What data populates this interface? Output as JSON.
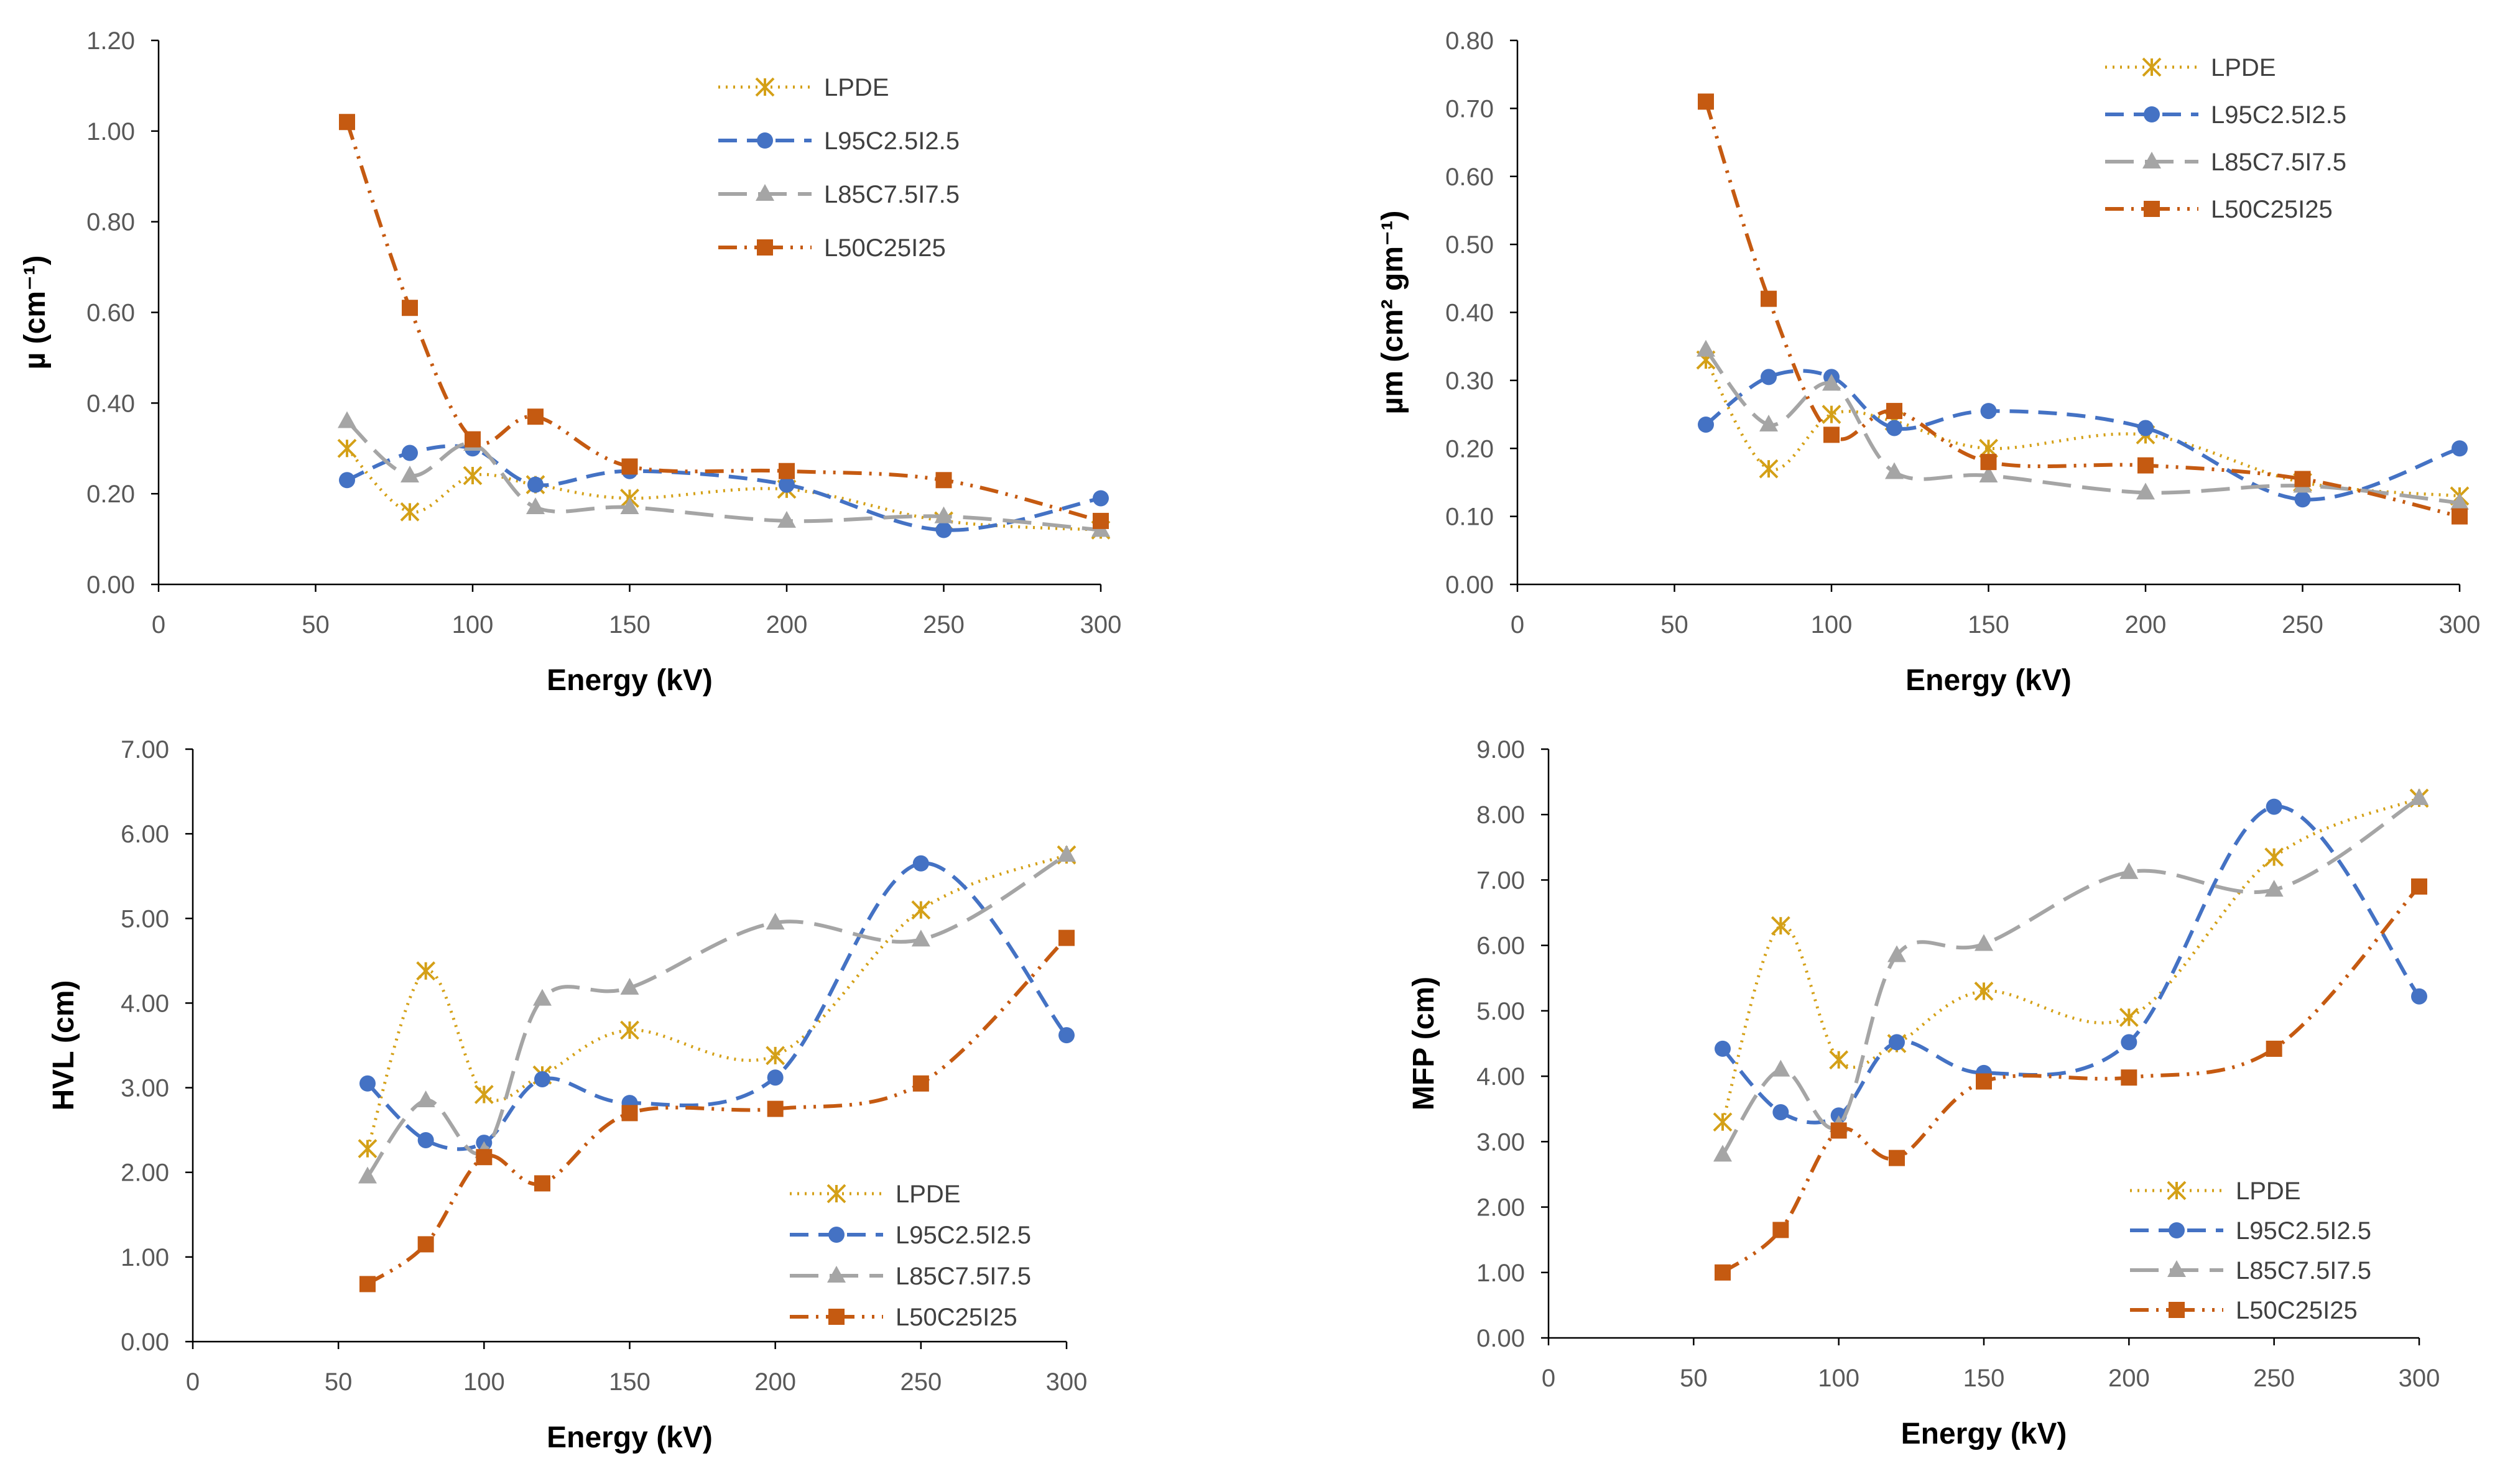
{
  "series_styles": [
    {
      "name": "LPDE",
      "color": "#D4A017",
      "dash": "3,9",
      "width": 5,
      "marker": "star"
    },
    {
      "name": "L95C2.5I2.5",
      "color": "#4472C4",
      "dash": "30,16",
      "width": 6,
      "marker": "circle"
    },
    {
      "name": "L85C7.5I7.5",
      "color": "#A5A5A5",
      "dash": "46,18",
      "width": 6,
      "marker": "triangle"
    },
    {
      "name": "L50C25I25",
      "color": "#C55A11",
      "dash": "30,12,4,12,4,12",
      "width": 6,
      "marker": "square"
    }
  ],
  "chart_data": [
    {
      "type": "line",
      "id": "mu",
      "xlabel": "Energy (kV)",
      "ylabel": "µ (cm⁻¹)",
      "xlim": [
        0,
        300
      ],
      "xticks": [
        0,
        50,
        100,
        150,
        200,
        250,
        300
      ],
      "xtick_labels": [
        "0",
        "50",
        "100",
        "150",
        "200",
        "250",
        "300"
      ],
      "ylim": [
        0,
        1.2
      ],
      "yticks": [
        0,
        0.2,
        0.4,
        0.6,
        0.8,
        1.0,
        1.2
      ],
      "ytick_labels": [
        "0.00",
        "0.20",
        "0.40",
        "0.60",
        "0.80",
        "1.00",
        "1.20"
      ],
      "legend_position": "top-right",
      "x": [
        60,
        80,
        100,
        120,
        150,
        200,
        250,
        300
      ],
      "series": [
        {
          "name": "LPDE",
          "values": [
            0.3,
            0.16,
            0.24,
            0.22,
            0.19,
            0.21,
            0.14,
            0.12
          ]
        },
        {
          "name": "L95C2.5I2.5",
          "values": [
            0.23,
            0.29,
            0.3,
            0.22,
            0.25,
            0.22,
            0.12,
            0.19
          ]
        },
        {
          "name": "L85C7.5I7.5",
          "values": [
            0.36,
            0.24,
            0.31,
            0.17,
            0.17,
            0.14,
            0.15,
            0.12
          ]
        },
        {
          "name": "L50C25I25",
          "values": [
            1.02,
            0.61,
            0.32,
            0.37,
            0.26,
            0.25,
            0.23,
            0.14
          ]
        }
      ]
    },
    {
      "type": "line",
      "id": "mu-m",
      "xlabel": "Energy (kV)",
      "ylabel": "µm (cm² gm⁻¹)",
      "xlim": [
        0,
        300
      ],
      "xticks": [
        0,
        50,
        100,
        150,
        200,
        250,
        300
      ],
      "xtick_labels": [
        "0",
        "50",
        "100",
        "150",
        "200",
        "250",
        "300"
      ],
      "ylim": [
        0,
        0.8
      ],
      "yticks": [
        0,
        0.1,
        0.2,
        0.3,
        0.4,
        0.5,
        0.6,
        0.7,
        0.8
      ],
      "ytick_labels": [
        "0.00",
        "0.10",
        "0.20",
        "0.30",
        "0.40",
        "0.50",
        "0.60",
        "0.70",
        "0.80"
      ],
      "legend_position": "top-right",
      "x": [
        60,
        80,
        100,
        120,
        150,
        200,
        250,
        300
      ],
      "series": [
        {
          "name": "LPDE",
          "values": [
            0.33,
            0.17,
            0.25,
            0.24,
            0.2,
            0.22,
            0.15,
            0.13
          ]
        },
        {
          "name": "L95C2.5I2.5",
          "values": [
            0.235,
            0.305,
            0.305,
            0.23,
            0.255,
            0.23,
            0.125,
            0.2
          ]
        },
        {
          "name": "L85C7.5I7.5",
          "values": [
            0.345,
            0.235,
            0.295,
            0.165,
            0.16,
            0.135,
            0.145,
            0.12
          ]
        },
        {
          "name": "L50C25I25",
          "values": [
            0.71,
            0.42,
            0.22,
            0.255,
            0.18,
            0.175,
            0.155,
            0.1
          ]
        }
      ]
    },
    {
      "type": "line",
      "id": "hvl",
      "xlabel": "Energy (kV)",
      "ylabel": "HVL (cm)",
      "xlim": [
        0,
        300
      ],
      "xticks": [
        0,
        50,
        100,
        150,
        200,
        250,
        300
      ],
      "xtick_labels": [
        "0",
        "50",
        "100",
        "150",
        "200",
        "250",
        "300"
      ],
      "ylim": [
        0,
        7
      ],
      "yticks": [
        0,
        1,
        2,
        3,
        4,
        5,
        6,
        7
      ],
      "ytick_labels": [
        "0.00",
        "1.00",
        "2.00",
        "3.00",
        "4.00",
        "5.00",
        "6.00",
        "7.00"
      ],
      "legend_position": "bottom-right",
      "x": [
        60,
        80,
        100,
        120,
        150,
        200,
        250,
        300
      ],
      "series": [
        {
          "name": "LPDE",
          "values": [
            2.28,
            4.38,
            2.92,
            3.15,
            3.68,
            3.38,
            5.1,
            5.75
          ]
        },
        {
          "name": "L95C2.5I2.5",
          "values": [
            3.05,
            2.38,
            2.35,
            3.1,
            2.82,
            3.12,
            5.65,
            3.62
          ]
        },
        {
          "name": "L85C7.5I7.5",
          "values": [
            1.95,
            2.85,
            2.25,
            4.05,
            4.18,
            4.95,
            4.75,
            5.75
          ]
        },
        {
          "name": "L50C25I25",
          "values": [
            0.68,
            1.15,
            2.18,
            1.87,
            2.7,
            2.75,
            3.05,
            4.77
          ]
        }
      ]
    },
    {
      "type": "line",
      "id": "mfp",
      "xlabel": "Energy (kV)",
      "ylabel": "MFP (cm)",
      "xlim": [
        0,
        300
      ],
      "xticks": [
        0,
        50,
        100,
        150,
        200,
        250,
        300
      ],
      "xtick_labels": [
        "0",
        "50",
        "100",
        "150",
        "200",
        "250",
        "300"
      ],
      "ylim": [
        0,
        9
      ],
      "yticks": [
        0,
        1,
        2,
        3,
        4,
        5,
        6,
        7,
        8,
        9
      ],
      "ytick_labels": [
        "0.00",
        "1.00",
        "2.00",
        "3.00",
        "4.00",
        "5.00",
        "6.00",
        "7.00",
        "8.00",
        "9.00"
      ],
      "legend_position": "bottom-right",
      "x": [
        60,
        80,
        100,
        120,
        150,
        200,
        250,
        300
      ],
      "series": [
        {
          "name": "LPDE",
          "values": [
            3.3,
            6.3,
            4.25,
            4.5,
            5.3,
            4.9,
            7.35,
            8.25
          ]
        },
        {
          "name": "L95C2.5I2.5",
          "values": [
            4.42,
            3.45,
            3.4,
            4.52,
            4.05,
            4.52,
            8.12,
            5.22
          ]
        },
        {
          "name": "L85C7.5I7.5",
          "values": [
            2.8,
            4.1,
            3.25,
            5.85,
            6.02,
            7.12,
            6.85,
            8.25
          ]
        },
        {
          "name": "L50C25I25",
          "values": [
            1.0,
            1.65,
            3.17,
            2.75,
            3.92,
            3.98,
            4.42,
            6.9
          ]
        }
      ]
    }
  ]
}
